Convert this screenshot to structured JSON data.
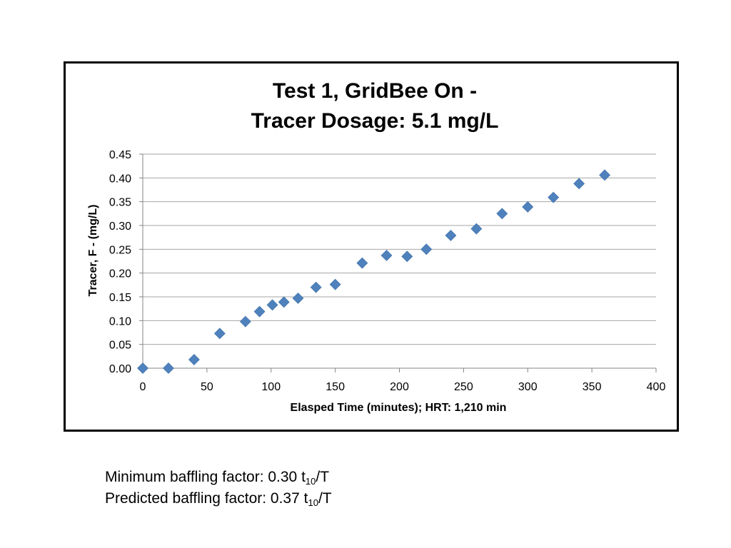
{
  "chart_data": {
    "type": "scatter",
    "title_lines": [
      "Test 1, GridBee On -",
      "Tracer Dosage: 5.1 mg/L"
    ],
    "xlabel": "Elasped Time (minutes); HRT: 1,210 min",
    "ylabel": "Tracer, F - (mg/L)",
    "xlim": [
      0,
      400
    ],
    "ylim": [
      0,
      0.45
    ],
    "x_ticks": [
      "0",
      "50",
      "100",
      "150",
      "200",
      "250",
      "300",
      "350",
      "400"
    ],
    "y_ticks": [
      "0.00",
      "0.05",
      "0.10",
      "0.15",
      "0.20",
      "0.25",
      "0.30",
      "0.35",
      "0.40",
      "0.45"
    ],
    "grid": "horizontal",
    "legend": "none",
    "marker": "diamond",
    "marker_color": "#4f81bd",
    "series": [
      {
        "x": [
          0,
          20,
          40,
          60,
          80,
          91,
          101,
          110,
          121,
          135,
          150,
          171,
          190,
          206,
          221,
          240,
          260,
          280,
          300,
          320,
          340,
          360
        ],
        "y": [
          0.0,
          0.0,
          0.018,
          0.073,
          0.098,
          0.119,
          0.133,
          0.139,
          0.147,
          0.17,
          0.176,
          0.221,
          0.237,
          0.235,
          0.25,
          0.279,
          0.293,
          0.325,
          0.339,
          0.359,
          0.388,
          0.406
        ]
      }
    ]
  },
  "notes": {
    "min_prefix": "Minimum baffling factor: 0.30 t",
    "min_sub": "10",
    "min_suffix": "/T",
    "pred_prefix": "Predicted baffling factor: 0.37 t",
    "pred_sub": "10",
    "pred_suffix": "/T"
  }
}
